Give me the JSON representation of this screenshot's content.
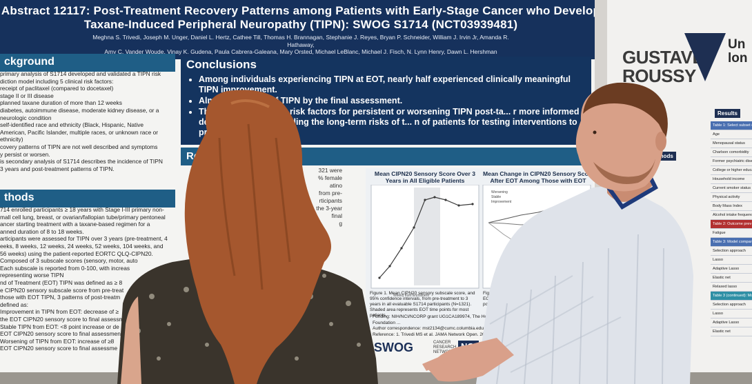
{
  "poster": {
    "title_line1": "Abstract 12117: Post-Treatment Recovery Patterns among Patients with Early-Stage Cancer who Develop",
    "title_line2": "Taxane-Induced Peripheral Neuropathy (TIPN): SWOG S1714 (NCT03939481)",
    "authors_line1": "Meghna S. Trivedi, Joseph M. Unger, Daniel L. Hertz, Cathee Till, Thomas H. Brannagan, Stephanie J. Reyes, Bryan P. Schneider, William J. Irvin Jr, Amanda R. Hathaway,",
    "authors_line2": "Amy C. Vander Woude, Vinay K. Gudena, Paula Cabrera-Galeana, Mary Orsted, Michael LeBlanc, Michael J. Fisch, N. Lynn Henry, Dawn L. Hershman",
    "background_heading": "ckground",
    "background_lines": [
      "primary analysis of S1714 developed and validated a TIPN risk",
      "diction model including 5 clinical risk factors:",
      "receipt of paclitaxel (compared to docetaxel)",
      "stage II or III disease",
      "planned taxane duration of more than 12 weeks",
      "diabetes, autoimmune disease, moderate kidney disease, or a",
      "neurologic condition",
      "self-identified race and ethnicity (Black, Hispanic, Native",
      "American, Pacific Islander, multiple races, or unknown race or",
      "ethnicity)",
      "covery patterns of TIPN are not well described and symptoms",
      "y persist or worsen.",
      "is secondary analysis of S1714 describes the incidence of TIPN",
      "3 years and post-treatment patterns of TIPN."
    ],
    "methods_heading": "thods",
    "methods_lines": [
      "714 enrolled participants ≥ 18 years with Stage I-III primary non-",
      "mall cell lung, breast, or ovarian/fallopian tube/primary pentoneal",
      "ancer starting treatment with a taxane-based regimen for a",
      "anned duration of 8 to 18 weeks.",
      "articipants were assessed for TIPN over 3 years (pre-treatment, 4",
      "eeks, 8 weeks, 12 weeks, 24 weeks, 52 weeks, 104 weeks, and",
      "56 weeks) using the patient-reported EORTC QLQ-CIPN20.",
      "Composed of 3 subscale scores (sensory, motor, auto",
      "Each subscale is reported from 0-100, with increas",
      "representing worse TIPN",
      "nd of Treatment (EOT) TIPN was defined as ≥ 8",
      "e CIPN20 sensory subscale score from pre-treat",
      "those with EOT TIPN, 3 patterns of post-treatm",
      "defined as:",
      "Improvement in TIPN from EOT: decrease of ≥",
      "the EOT CIPN20 sensory score to final assessm",
      "Stable TIPN from EOT: <8 point increase or de",
      "EOT CIPN20 sensory score to final assessmen",
      "Worsening of TIPN from EOT: increase of ≥8",
      "EOT CIPN20 sensory score to final assessme"
    ],
    "conclusions_heading": "Conclusions",
    "conclusions": [
      "Among individuals experiencing TIPN at EOT, nearly half experienced clinically meaningful TIPN improvement.",
      "Almost ... sening of TIPN by the final assessment.",
      "The ... and correlative risk factors for persistent or worsening TIPN post-ta... r more informed decision-making regarding the long-term risks of t... n of patients for testing interventions to prevent persistent TIPN."
    ],
    "results_heading": "Re",
    "results_lines": [
      "321 were",
      "",
      "% female",
      "atino",
      "",
      "from pre-",
      "rticipants",
      "",
      "",
      "the 3-year",
      "final",
      "g"
    ],
    "figure1_title": "Mean CIPN20 Sensory Score Over 3 Years in All Eligible Patients",
    "figure2_title": "Mean Change in CIPN20 Sensory Sco... After EOT Among Those with EOT TIP...",
    "figure1_caption": "Figure 1. Mean CIPN20 sensory subscale score, and 95% confidence intervals, from pre-treatment to 3 years in all evaluable S1714 participants (N=1321). Shaded area represents EOT time points for most patients.",
    "figure2_caption": "Figure 2. Mean change in CIPN20 ... score since EOT, and 95% ... with TIPN at EOT (N=... stratified by post-treat... pattern.",
    "legend": [
      "Worsening",
      "Stable",
      "Improvement"
    ],
    "x_axis_label": "Weeks from Enrollment",
    "funding": "Funding: NIH/NCI/NCORP grant UG1CA189974, The Hope Foundation ...",
    "contact": "Author correspondence: mst2134@cumc.columbia.edu",
    "reference": "Reference: 1. Trivedi MS et al. JAMA Network Open. 2024.",
    "logo_swog": "SWOG",
    "logo_swog_sub": "CANCER RESEARCH NETWORK",
    "logo_nci": "NCI"
  },
  "side_poster": {
    "logo": "GUSTAVE ROUSSY",
    "title": "Un lon",
    "results_head": "Results",
    "methods_head": "thods",
    "rows": [
      "Table 1: Select subset c",
      "Age",
      "Menopausal status",
      "Charlson comorbidity",
      "Former psychiatric disease",
      "College or higher education",
      "Household income",
      "Current smoker status",
      "Physical activity",
      "Body Mass Index",
      "Alcohol intake frequency",
      "Table 2: Outcome prev",
      "Fatigue",
      "Table 3: Model compar",
      "Selection approach",
      "Lasso",
      "Adaptive Lasso",
      "Elastic net",
      "Relaxed lasso",
      "Table 3 (continued): Mod",
      "Selection approach",
      "Lasso",
      "Adaptive Lasso",
      "Elastic net"
    ]
  },
  "colors": {
    "header_navy": "#16315c",
    "section_teal": "#1f5e86",
    "woman_hair": "#a5572e",
    "man_shirt": "#dfe3ea",
    "lanyard": "#1e3a7a"
  }
}
